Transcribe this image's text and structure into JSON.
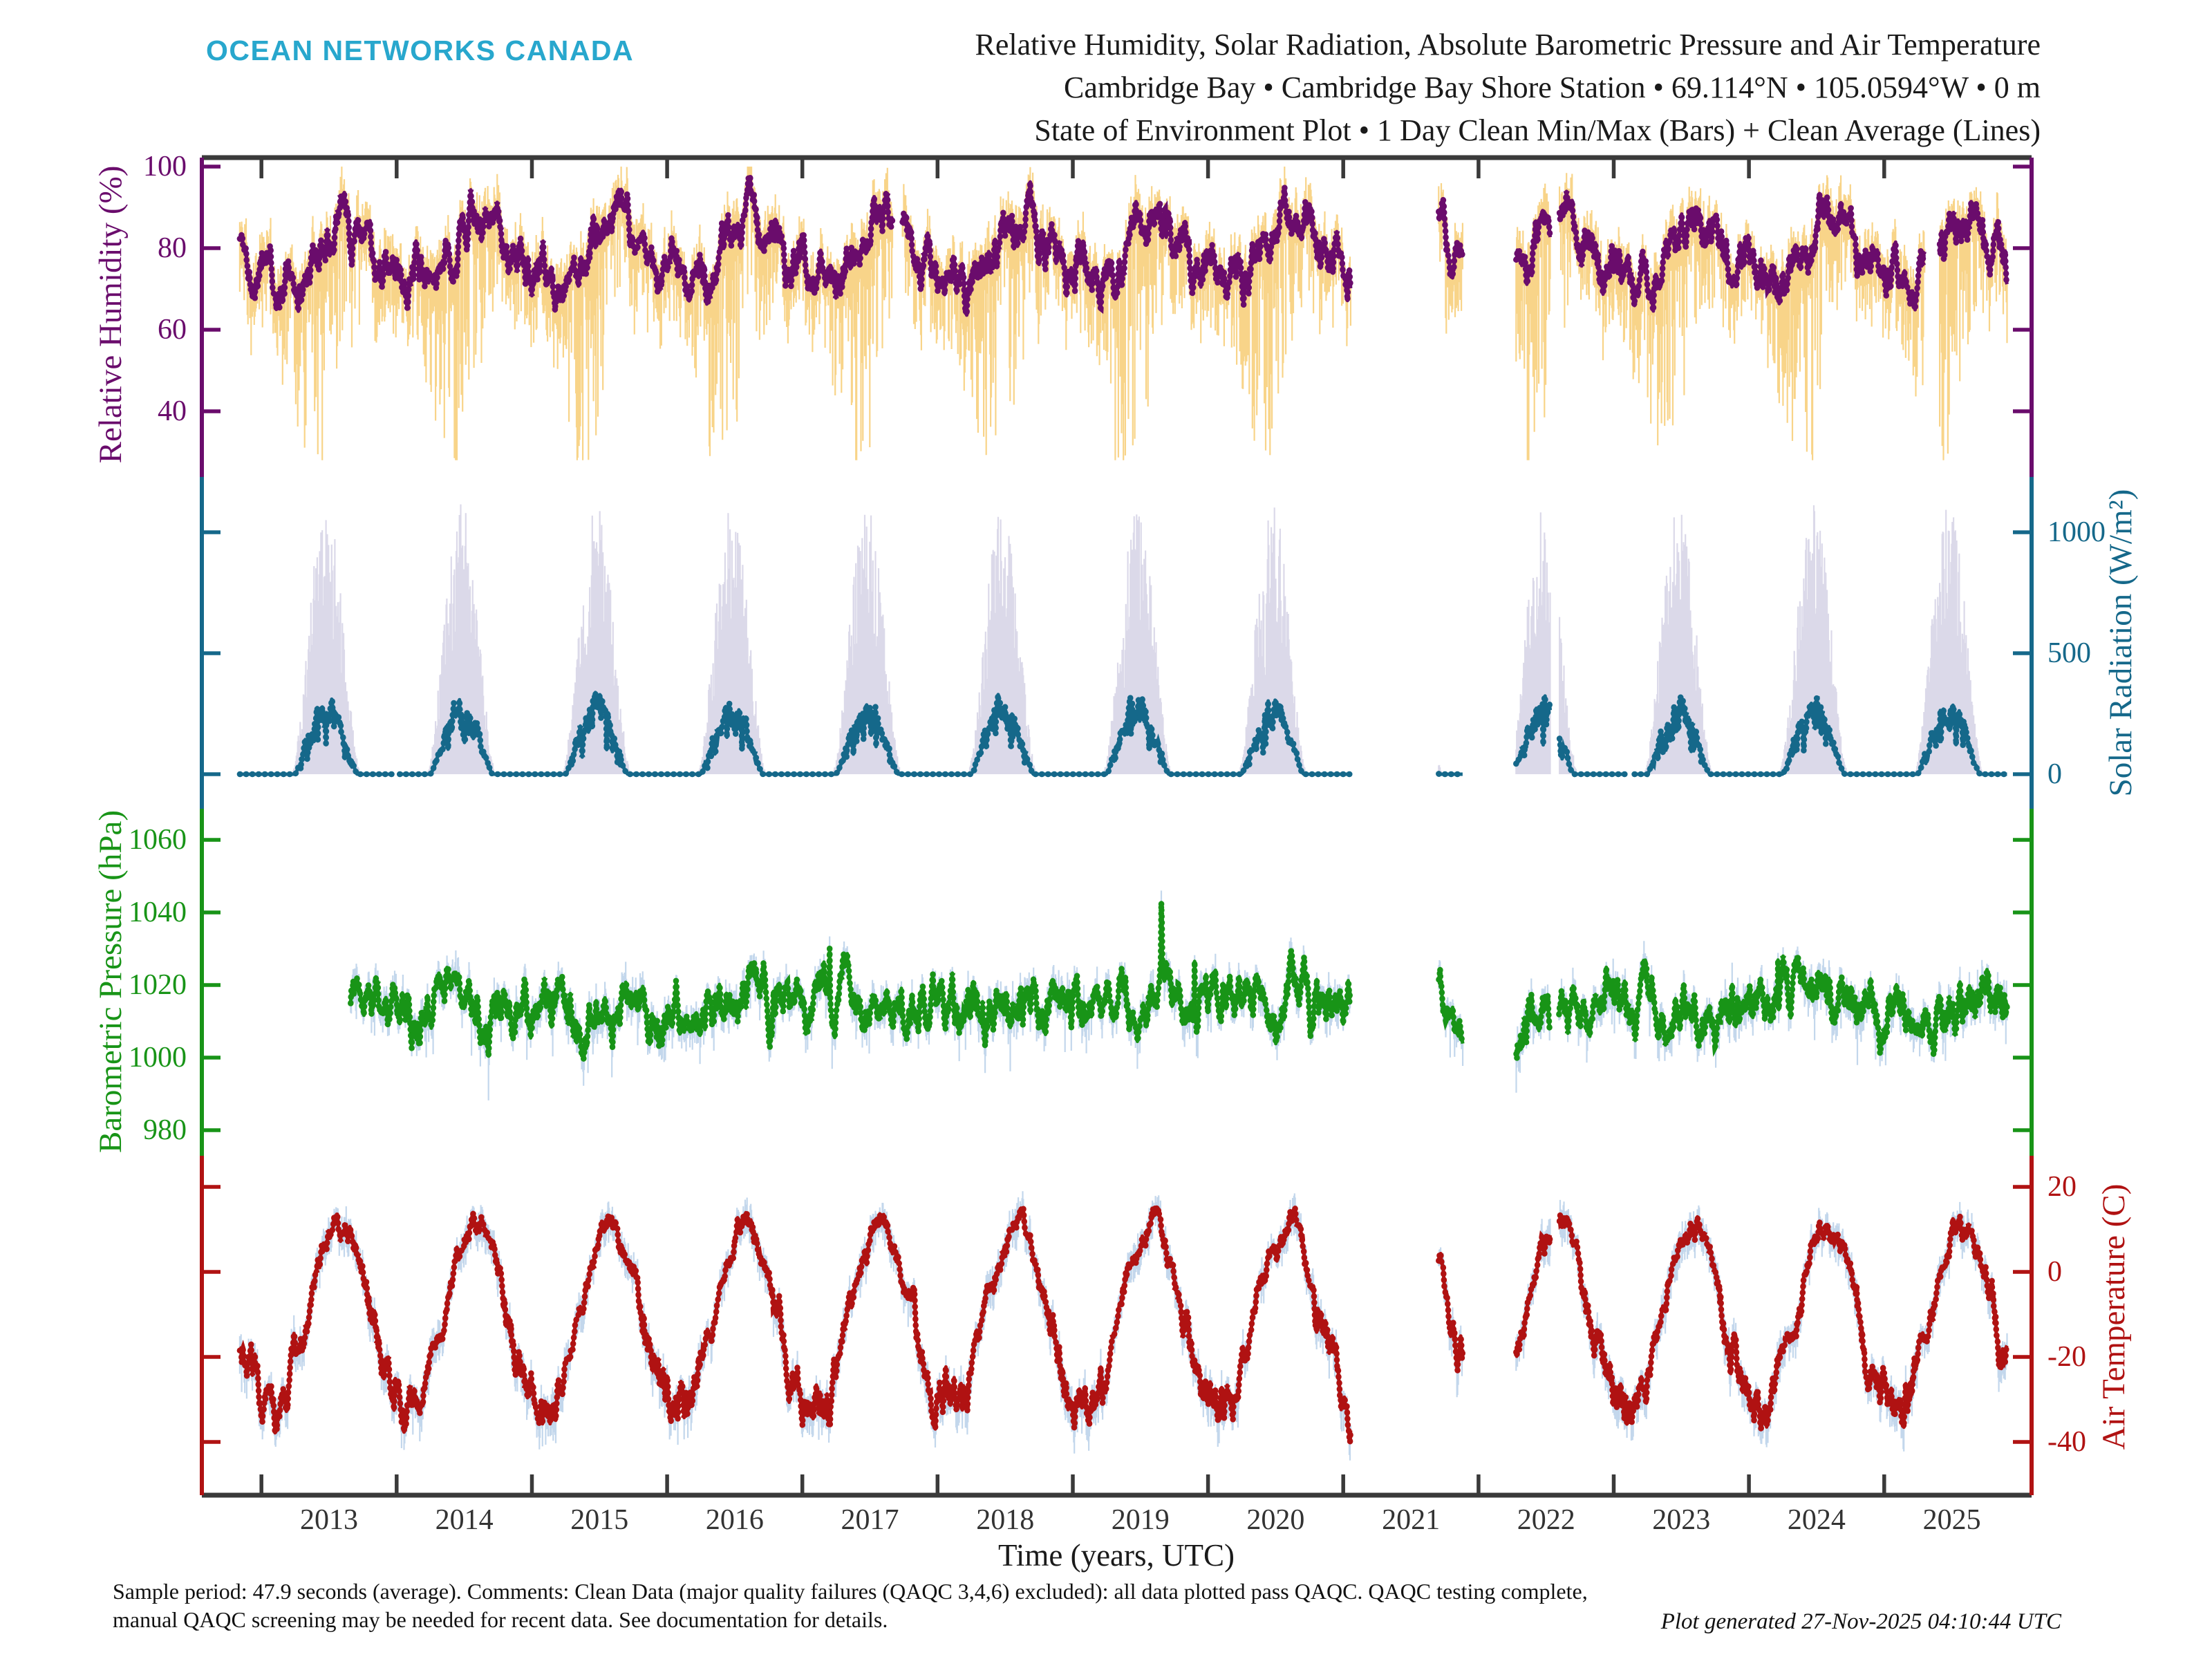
{
  "header": {
    "logo": "OCEAN NETWORKS CANADA",
    "logo_color": "#28A7CD",
    "title_line1": "Relative Humidity, Solar Radiation, Absolute Barometric Pressure and Air Temperature",
    "title_line2": "Cambridge Bay • Cambridge Bay Shore Station • 69.114°N • 105.0594°W • 0 m",
    "title_line3": "State of Environment Plot • 1 Day Clean Min/Max (Bars) + Clean Average (Lines)"
  },
  "footer": {
    "line1": "Sample period: 47.9 seconds (average). Comments: Clean Data (major quality failures (QAQC 3,4,6) excluded): all data plotted pass QAQC. QAQC testing complete,",
    "line2": "manual QAQC screening may be needed for recent data. See documentation for details.",
    "generated": "Plot generated 27-Nov-2025 04:10:44 UTC"
  },
  "chart_data": {
    "type": "line",
    "title": "State of Environment Plot, 1 Day Clean Min/Max (Bars) + Clean Average (Lines)",
    "xlabel": "Time (years, UTC)",
    "x_range": [
      2012.56,
      2026.09
    ],
    "x_ticks": [
      2013,
      2014,
      2015,
      2016,
      2017,
      2018,
      2019,
      2020,
      2021,
      2022,
      2023,
      2024,
      2025
    ],
    "axis_frame_color": "#3a3a3a",
    "grid": false,
    "legend": "none",
    "gaps": [
      [
        2021.055,
        2021.705
      ],
      [
        2021.885,
        2022.275
      ],
      [
        2022.53,
        2022.595
      ]
    ],
    "panels": [
      {
        "id": "humidity",
        "ylabel": "Relative Humidity (%)",
        "ylabel_side": "left",
        "tick_label_side": "left",
        "y_ticks": [
          100,
          80,
          60,
          40
        ],
        "y_range": [
          25,
          102
        ],
        "color": "#6A0C6C",
        "bar_color": "#F8D489",
        "data_start": 2012.84,
        "data_end": 2025.91,
        "extra_gaps": [
          [
            2017.67,
            2017.74
          ],
          [
            2025.3,
            2025.41
          ]
        ],
        "monthly_avg": [
          75,
          73,
          72,
          73,
          77,
          82,
          86,
          88,
          86,
          81,
          77,
          75
        ],
        "monthly_bar_depth": [
          6,
          7,
          10,
          16,
          22,
          24,
          18,
          12,
          9,
          7,
          6,
          6
        ],
        "bar_up": 6,
        "noise": 3.2,
        "seed": 11
      },
      {
        "id": "solar",
        "ylabel": "Solar Radiation (W/m²)",
        "ylabel_side": "right",
        "tick_label_side": "right",
        "y_ticks": [
          1000,
          500,
          0
        ],
        "y_range": [
          -30,
          1220
        ],
        "color": "#15688A",
        "bar_color": "#DBD9E9",
        "data_start": 2012.84,
        "data_end": 2025.91,
        "extra_gaps": [
          [
            2013.98,
            2014.02
          ],
          [
            2023.1,
            2023.15
          ]
        ],
        "avg_peak": 315,
        "max_peak": 1120,
        "peak_frac": 0.478,
        "seed": 22
      },
      {
        "id": "pressure",
        "ylabel": "Barometric Pressure (hPa)",
        "ylabel_side": "left",
        "tick_label_side": "left",
        "y_ticks": [
          1060,
          1040,
          1020,
          1000,
          980
        ],
        "y_range": [
          975,
          1075
        ],
        "color": "#189417",
        "bar_color": "#C3D7EC",
        "data_start": 2013.66,
        "data_end": 2025.91,
        "extra_gaps": [],
        "base": 1014,
        "noise": 4.0,
        "phi": 0.9,
        "clamp": [
          980,
          1056
        ],
        "seed": 33
      },
      {
        "id": "temperature",
        "ylabel": "Air Temperature (C)",
        "ylabel_side": "right",
        "tick_label_side": "right",
        "y_ticks": [
          20,
          0,
          -20,
          -40
        ],
        "y_range": [
          -52,
          28
        ],
        "color": "#B01212",
        "bar_color": "#C3D7EC",
        "data_start": 2012.84,
        "data_end": 2025.91,
        "extra_gaps": [],
        "monthly_avg": [
          -31,
          -32,
          -27,
          -17,
          -6,
          3,
          10,
          12,
          4,
          -7,
          -19,
          -27
        ],
        "noise": 2.6,
        "seed": 44
      }
    ]
  }
}
